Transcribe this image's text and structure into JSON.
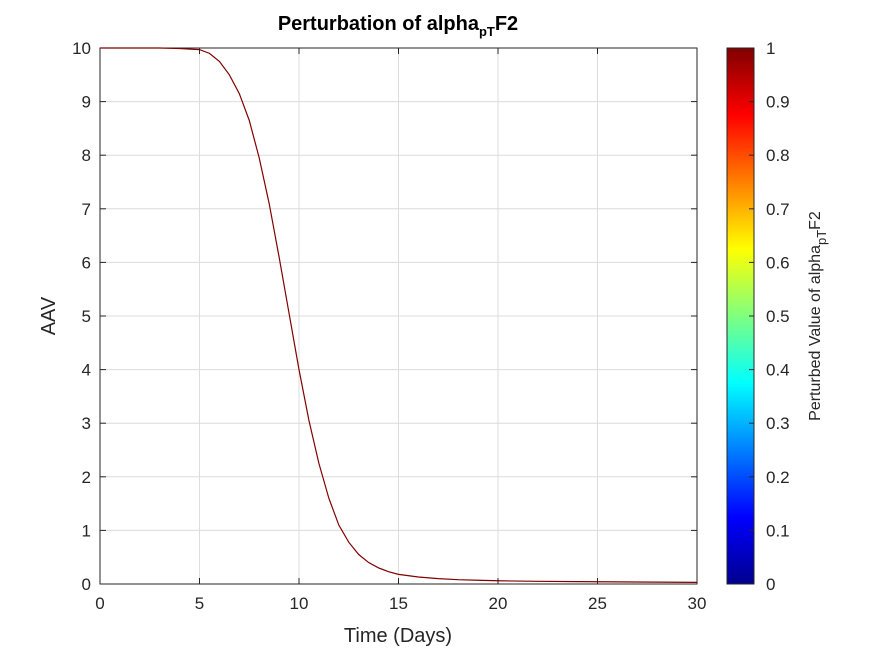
{
  "chart_data": {
    "type": "line",
    "title_main": "Perturbation of alpha",
    "title_subscript": "pT",
    "title_suffix": "F2",
    "xlabel": "Time (Days)",
    "ylabel": "AAV",
    "xlim": [
      0,
      30
    ],
    "ylim": [
      0,
      10
    ],
    "xticks": [
      "0",
      "5",
      "10",
      "15",
      "20",
      "25",
      "30"
    ],
    "yticks": [
      "0",
      "1",
      "2",
      "3",
      "4",
      "5",
      "6",
      "7",
      "8",
      "9",
      "10"
    ],
    "grid": true,
    "series": [
      {
        "color": "#800000",
        "x": [
          0,
          1,
          2,
          3,
          4,
          5,
          5.5,
          6,
          6.5,
          7,
          7.5,
          8,
          8.5,
          9,
          9.5,
          10,
          10.5,
          11,
          11.5,
          12,
          12.5,
          13,
          13.5,
          14,
          14.5,
          15,
          16,
          17,
          18,
          19,
          20,
          22,
          24,
          26,
          28,
          30
        ],
        "y": [
          10,
          10,
          10,
          10,
          9.99,
          9.97,
          9.9,
          9.75,
          9.5,
          9.15,
          8.65,
          7.95,
          7.1,
          6.1,
          5.05,
          4.0,
          3.05,
          2.25,
          1.6,
          1.1,
          0.78,
          0.55,
          0.4,
          0.3,
          0.23,
          0.18,
          0.13,
          0.1,
          0.08,
          0.07,
          0.06,
          0.05,
          0.045,
          0.04,
          0.035,
          0.03
        ]
      }
    ],
    "colorbar": {
      "colormap": "jet",
      "range": [
        0,
        1
      ],
      "ticks": [
        "0",
        "0.1",
        "0.2",
        "0.3",
        "0.4",
        "0.5",
        "0.6",
        "0.7",
        "0.8",
        "0.9",
        "1"
      ],
      "label_main": "Perturbed Value of alpha",
      "label_subscript": "pT",
      "label_suffix": "F2"
    }
  }
}
